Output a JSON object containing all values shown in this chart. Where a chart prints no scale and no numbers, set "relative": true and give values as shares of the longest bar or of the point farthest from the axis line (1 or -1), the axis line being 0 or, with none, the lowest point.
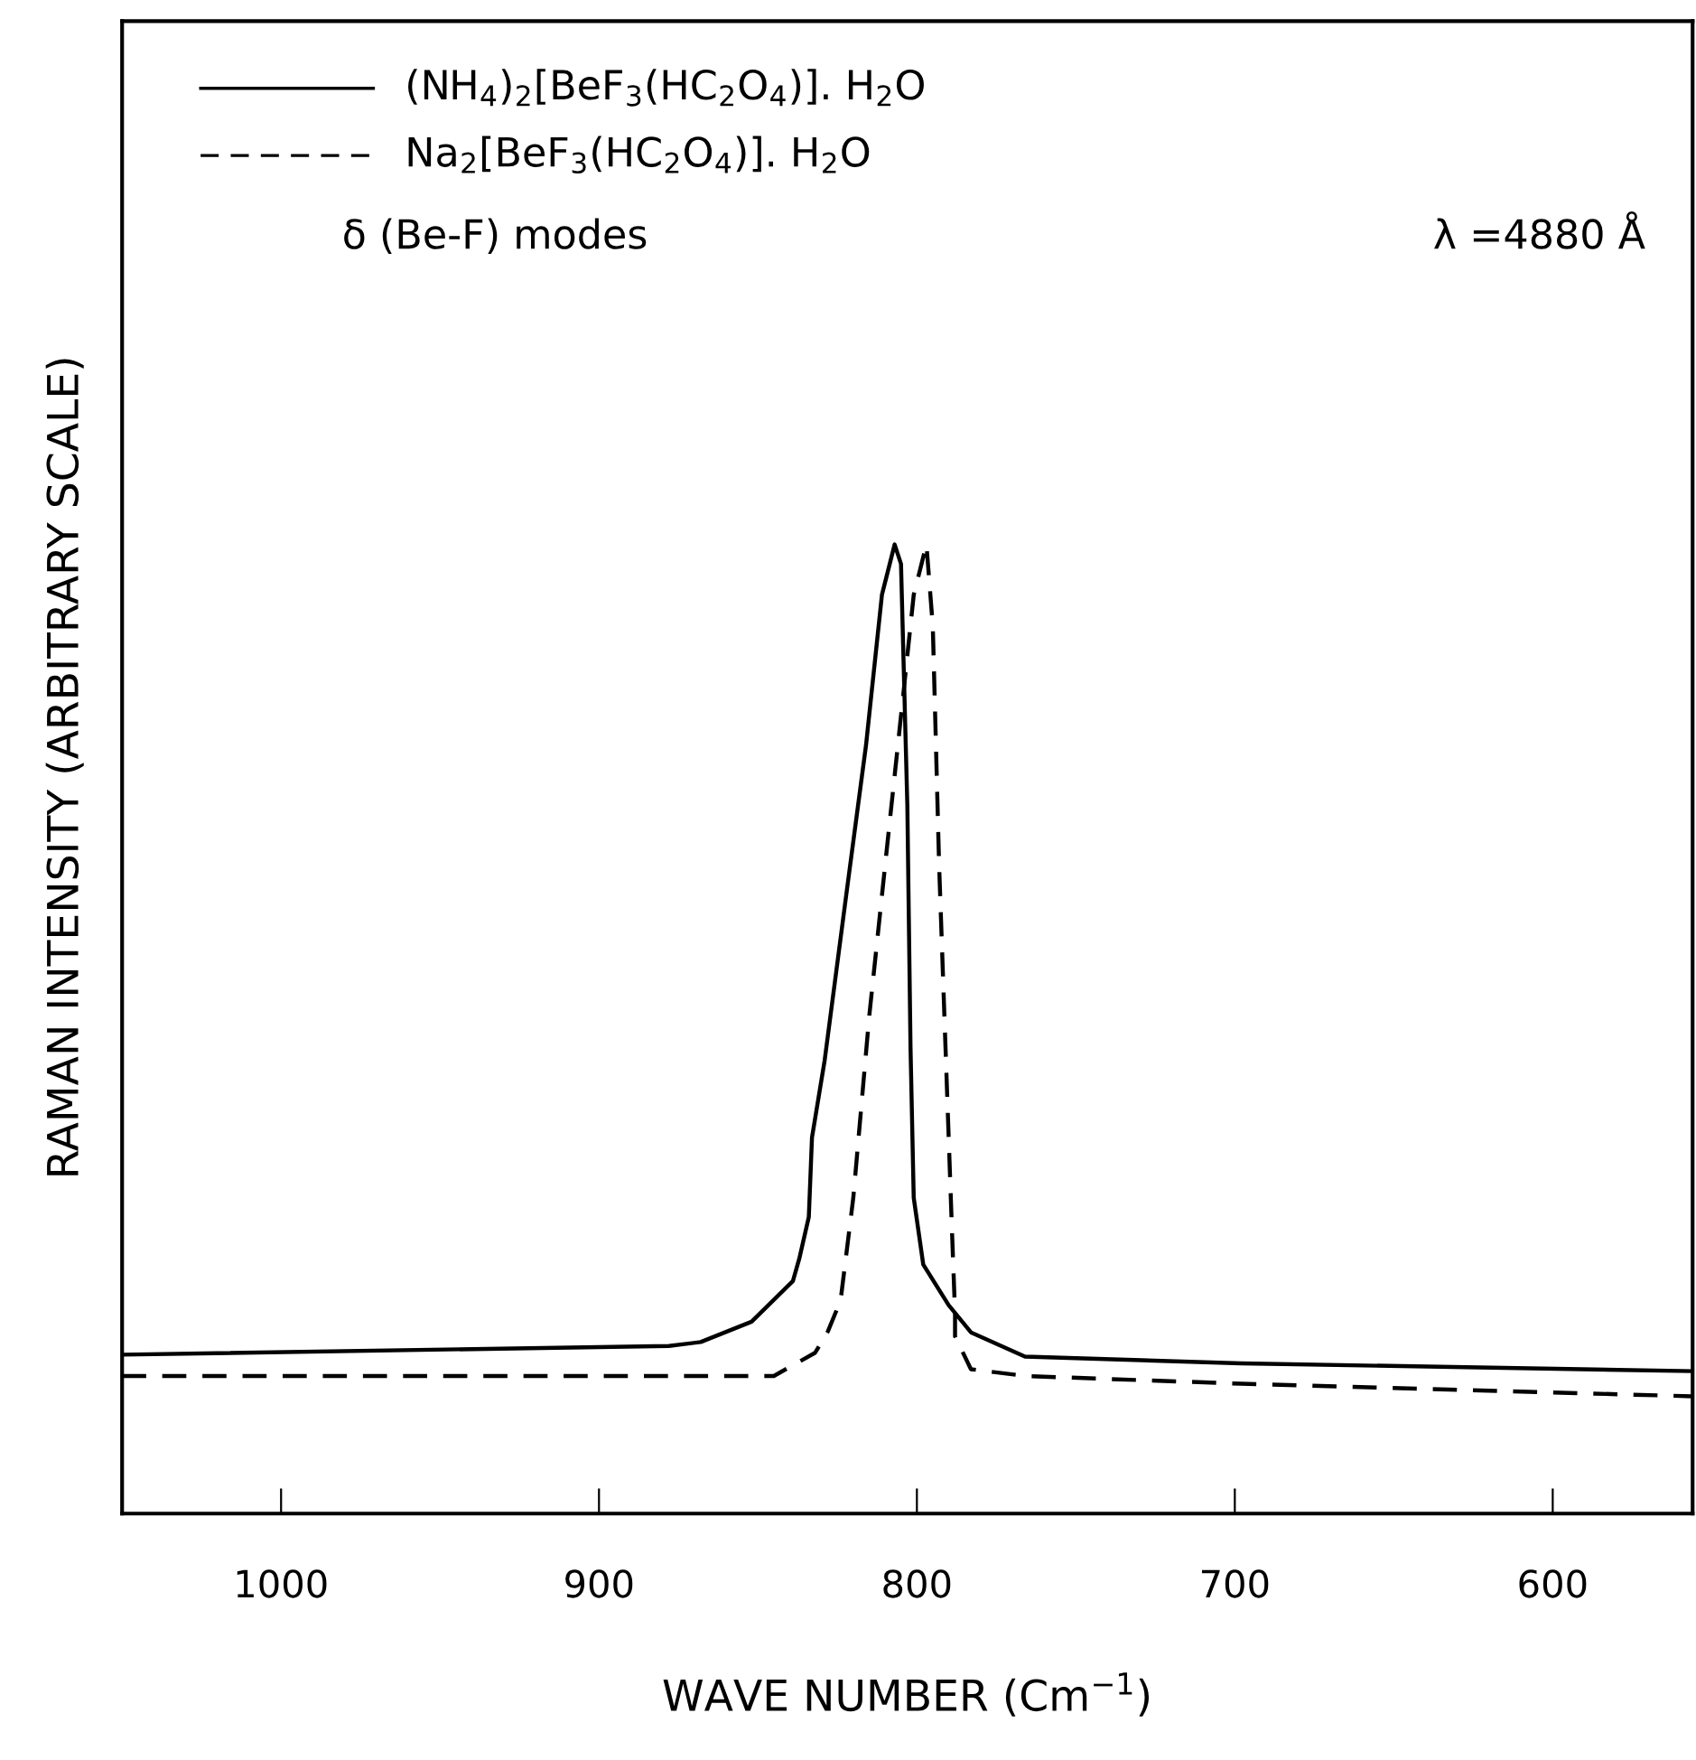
{
  "chart_data": {
    "type": "line",
    "relative": true,
    "xlabel": "WAVE NUMBER (Cm$^{−1}$)",
    "ylabel": "RAMAN INTENSITY (ARBITRARY SCALE)",
    "xlim": [
      1050,
      556
    ],
    "xticks": [
      1000,
      900,
      800,
      700,
      600
    ],
    "legend": false,
    "marker": "none",
    "grid": false,
    "annotations": [
      "δ (Be-F) modes",
      "λ =4880 Å"
    ],
    "series": [
      {
        "name": "(NH$_{4}$)$_{2}$[BeF$_{3}$(HC$_{2}$O$_{4}$)]. H$_{2}$O",
        "color": "#000000",
        "line_style": "solid",
        "x": [
          1050,
          878,
          868,
          852,
          839,
          837,
          834,
          833,
          829,
          822,
          816,
          811,
          807,
          805,
          803,
          802,
          801,
          798,
          790,
          783,
          766,
          698,
          556
        ],
        "values": [
          0.164,
          0.173,
          0.177,
          0.198,
          0.24,
          0.263,
          0.306,
          0.388,
          0.468,
          0.644,
          0.793,
          0.948,
          1.0,
          0.98,
          0.73,
          0.48,
          0.326,
          0.257,
          0.215,
          0.187,
          0.162,
          0.155,
          0.147
        ]
      },
      {
        "name": "Na$_{2}$[BeF$_{3}$(HC$_{2}$O$_{4}$)]. H$_{2}$O",
        "color": "#000000",
        "line_style": "dashed",
        "x": [
          1050,
          845,
          832,
          828,
          824,
          820,
          815,
          809,
          804,
          801,
          797,
          795,
          793,
          791,
          789,
          788,
          788,
          783,
          766,
          698,
          556
        ],
        "values": [
          0.142,
          0.142,
          0.166,
          0.188,
          0.22,
          0.326,
          0.513,
          0.7,
          0.854,
          0.948,
          1.0,
          0.916,
          0.668,
          0.481,
          0.295,
          0.207,
          0.183,
          0.149,
          0.142,
          0.134,
          0.121
        ]
      }
    ]
  }
}
